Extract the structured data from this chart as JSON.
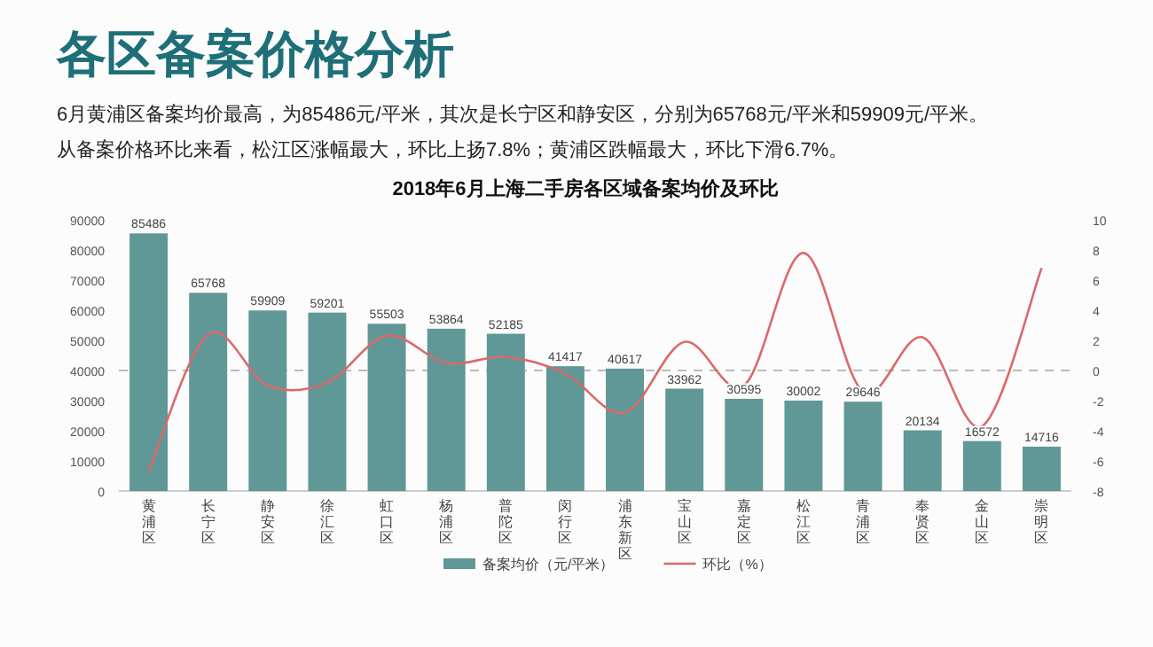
{
  "chart_data": {
    "type": "bar",
    "title": "各区备案价格分析",
    "subtitle": "2018年6月上海二手房各区域备案均价及环比",
    "annotations": [
      "6月黄浦区备案均价最高，为85486元/平米，其次是长宁区和静安区，分别为65768元/平米和59909元/平米。",
      "从备案价格环比来看，松江区涨幅最大，环比上扬7.8%；黄浦区跌幅最大，环比下滑6.7%。"
    ],
    "categories": [
      "黄浦区",
      "长宁区",
      "静安区",
      "徐汇区",
      "虹口区",
      "杨浦区",
      "普陀区",
      "闵行区",
      "浦东新区",
      "宝山区",
      "嘉定区",
      "松江区",
      "青浦区",
      "奉贤区",
      "金山区",
      "崇明区"
    ],
    "series": [
      {
        "name": "备案均价（元/平米）",
        "color": "#5f9896",
        "values": [
          85486,
          65768,
          59909,
          59201,
          55503,
          53864,
          52185,
          41417,
          40617,
          33962,
          30595,
          30002,
          29646,
          20134,
          16572,
          14716
        ],
        "value_labels": [
          "85486",
          "65768",
          "59909",
          "59201",
          "55503",
          "53864",
          "52185",
          "41417",
          "40617",
          "33962",
          "30595",
          "30002",
          "29646",
          "20134",
          "16572",
          "14716"
        ]
      },
      {
        "name": "环比（%）",
        "type": "line",
        "axis": "y2",
        "color": "#d9696b",
        "values": [
          -6.7,
          2.4,
          -1.0,
          -0.8,
          2.3,
          0.5,
          0.9,
          -0.2,
          -2.8,
          1.9,
          -1.0,
          7.8,
          -1.4,
          2.2,
          -3.7,
          6.8
        ]
      }
    ],
    "ylim": [
      0,
      90000
    ],
    "yticks": [
      0,
      10000,
      20000,
      30000,
      40000,
      50000,
      60000,
      70000,
      80000,
      90000
    ],
    "y2lim": [
      -8,
      10
    ],
    "y2ticks": [
      -8,
      -6,
      -4,
      -2,
      0,
      2,
      4,
      6,
      8,
      10
    ],
    "ref_lines": [
      {
        "axis": "y2",
        "value": 0,
        "color": "#bbbbbb",
        "line_style": "dashed"
      }
    ],
    "legend": "bottom",
    "grid": false
  }
}
